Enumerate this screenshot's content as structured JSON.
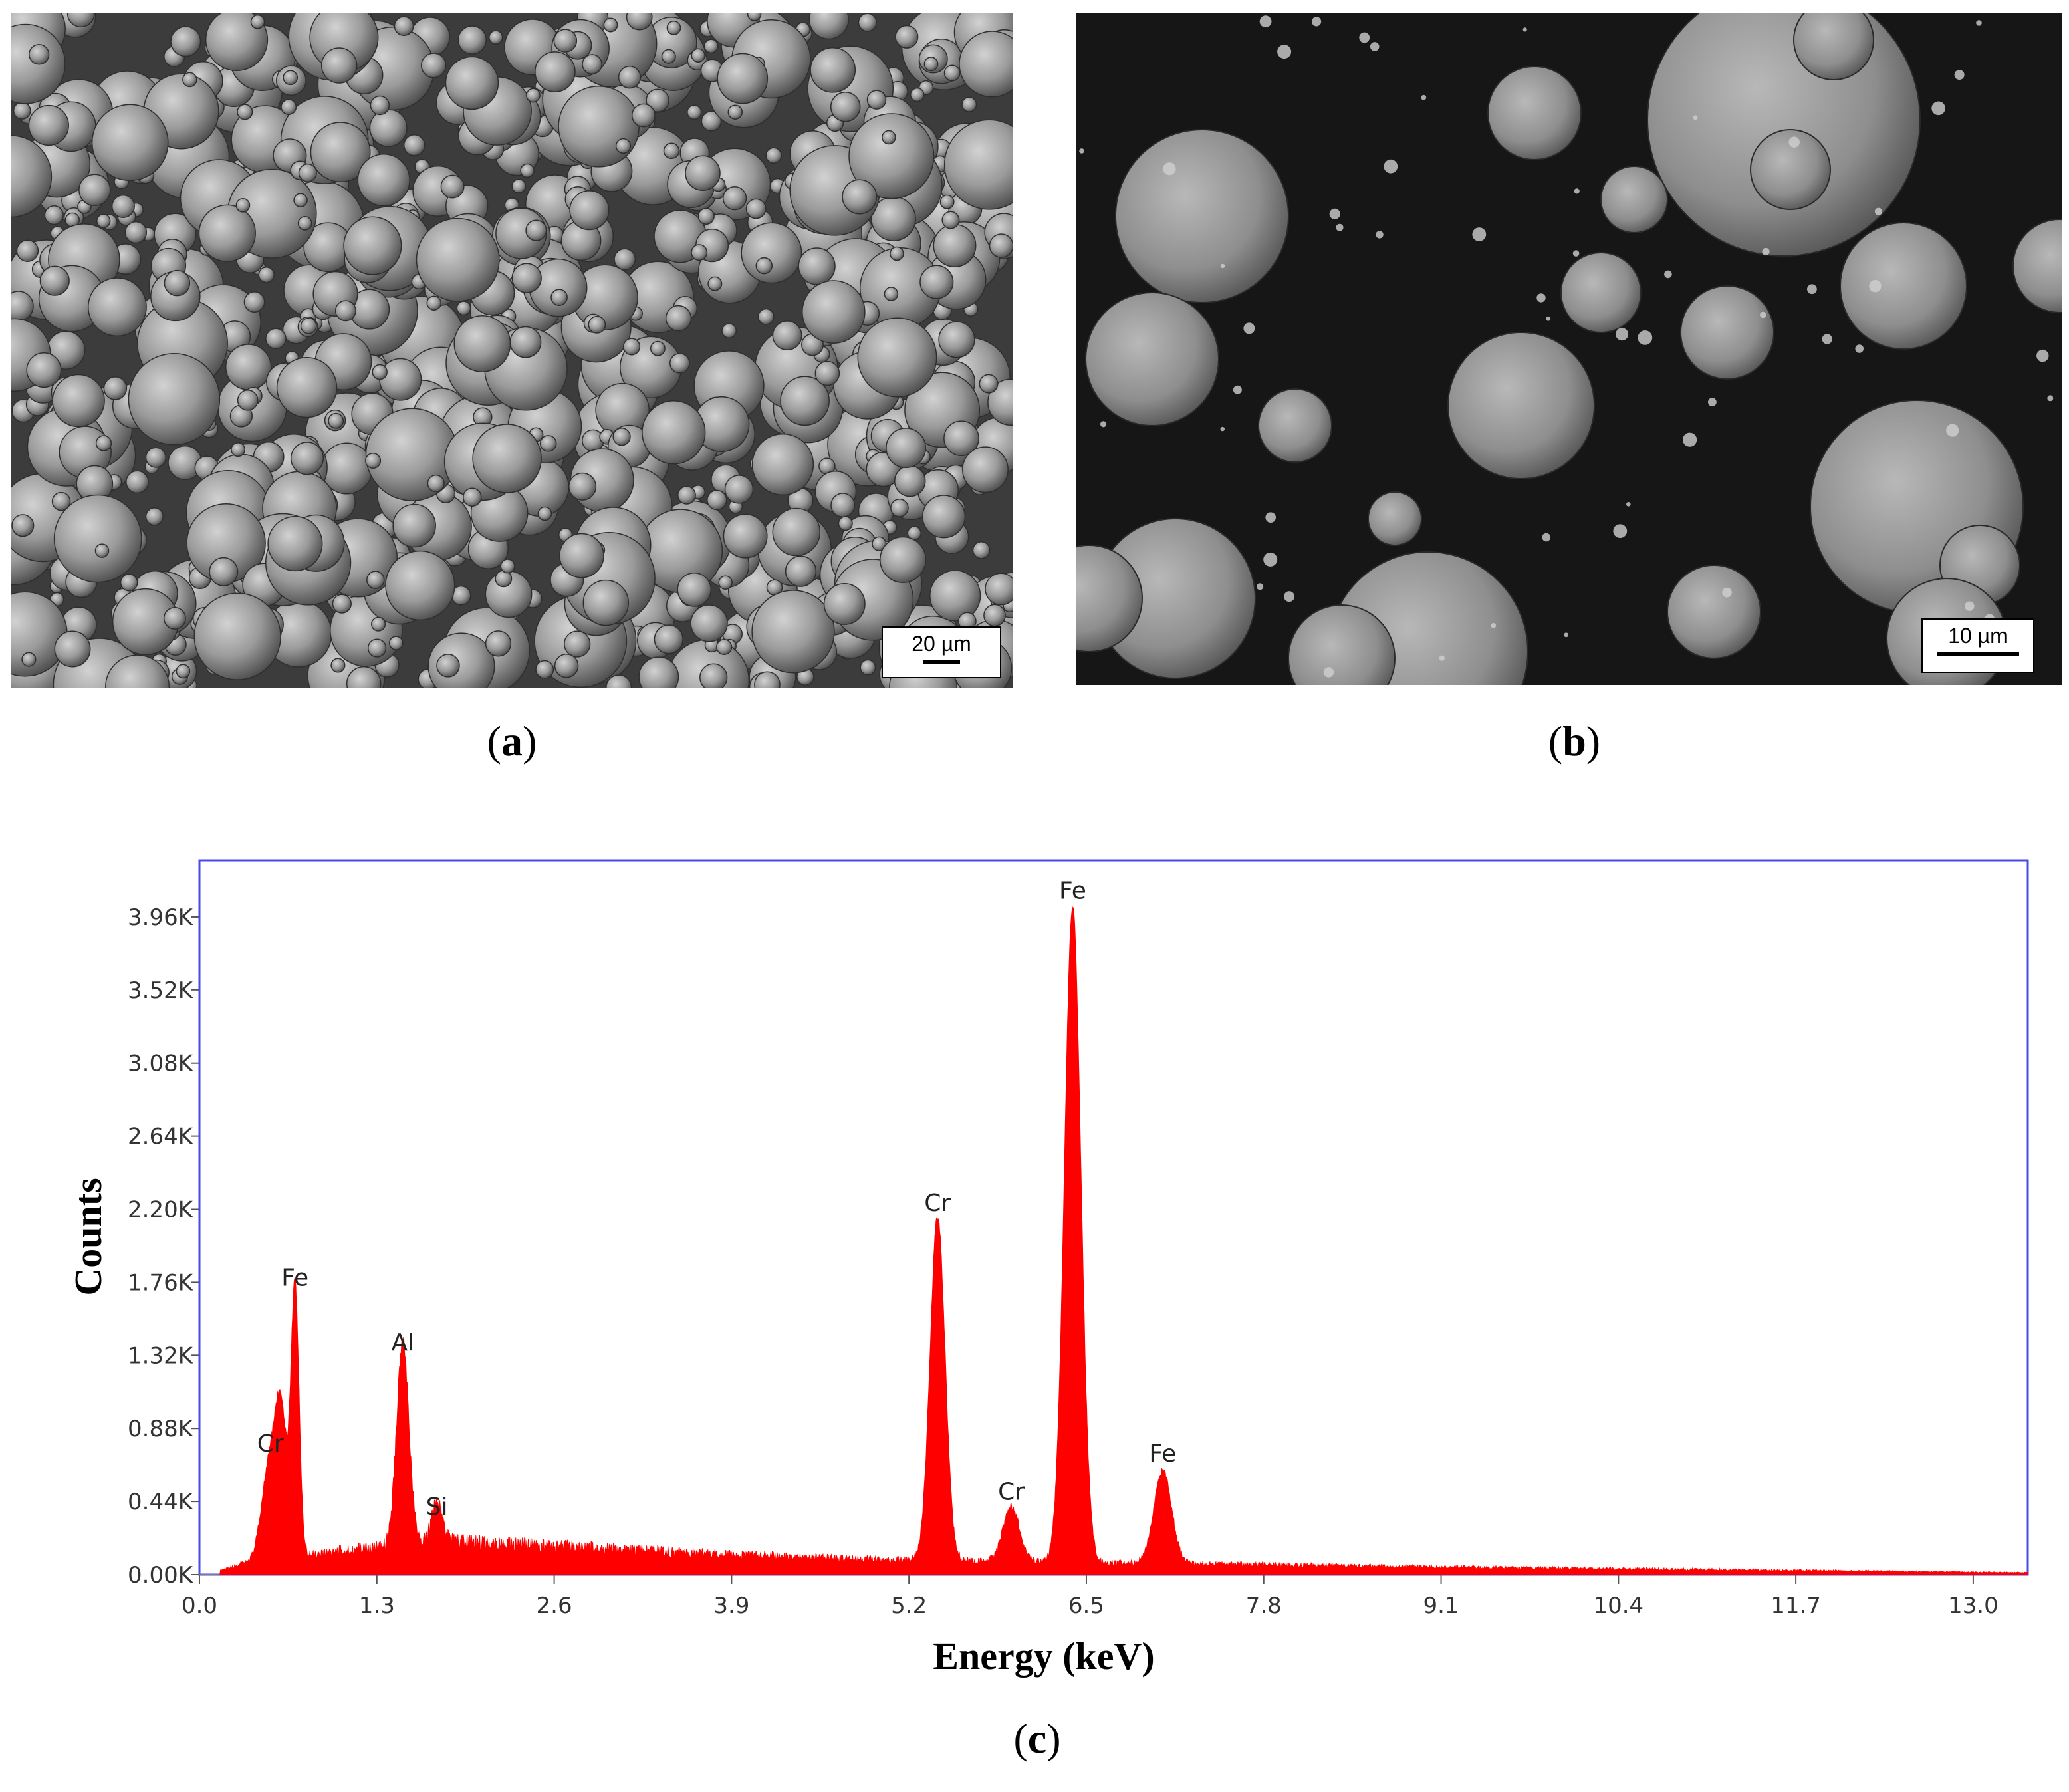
{
  "panel_a": {
    "caption_open": "(",
    "caption_letter": "a",
    "caption_close": ")",
    "scale_label": "20 µm",
    "image_description": "sem-micrograph-powder-particles-low-magnification"
  },
  "panel_b": {
    "caption_open": "(",
    "caption_letter": "b",
    "caption_close": ")",
    "scale_label": "10 µm",
    "image_description": "sem-micrograph-powder-particles-high-magnification"
  },
  "panel_c": {
    "caption_open": "(",
    "caption_letter": "c",
    "caption_close": ")"
  },
  "chart_data": {
    "type": "area",
    "xlabel": "Energy (keV)",
    "ylabel": "Counts",
    "xlim": [
      0.0,
      13.4
    ],
    "ylim": [
      0,
      4300
    ],
    "x_ticks": [
      "0.0",
      "1.3",
      "2.6",
      "3.9",
      "5.2",
      "6.5",
      "7.8",
      "9.1",
      "10.4",
      "11.7",
      "13.0"
    ],
    "y_ticks": [
      "0.00K",
      "0.44K",
      "0.88K",
      "1.32K",
      "1.76K",
      "2.20K",
      "2.64K",
      "3.08K",
      "3.52K",
      "3.96K"
    ],
    "colors": {
      "fill": "#ff0000",
      "frame": "#4a4ae8"
    },
    "background": {
      "level": 60,
      "points": [
        [
          0.15,
          20
        ],
        [
          0.3,
          60
        ],
        [
          1.0,
          140
        ],
        [
          1.8,
          200
        ],
        [
          2.6,
          170
        ],
        [
          3.9,
          120
        ],
        [
          5.0,
          90
        ],
        [
          7.8,
          60
        ],
        [
          9.1,
          45
        ],
        [
          10.4,
          35
        ],
        [
          11.7,
          25
        ],
        [
          13.0,
          15
        ],
        [
          13.4,
          12
        ]
      ]
    },
    "peaks": [
      {
        "label": "Cr",
        "energy": 0.52,
        "counts": 620,
        "width": 0.06
      },
      {
        "label": "",
        "energy": 0.6,
        "counts": 720,
        "width": 0.04
      },
      {
        "label": "Fe",
        "energy": 0.7,
        "counts": 1620,
        "width": 0.03
      },
      {
        "label": "Al",
        "energy": 1.49,
        "counts": 1230,
        "width": 0.045
      },
      {
        "label": "Si",
        "energy": 1.74,
        "counts": 240,
        "width": 0.04
      },
      {
        "label": "Cr",
        "energy": 5.41,
        "counts": 2070,
        "width": 0.055
      },
      {
        "label": "Cr",
        "energy": 5.95,
        "counts": 330,
        "width": 0.06
      },
      {
        "label": "Fe",
        "energy": 6.4,
        "counts": 3950,
        "width": 0.06
      },
      {
        "label": "Fe",
        "energy": 7.06,
        "counts": 560,
        "width": 0.065
      }
    ]
  }
}
